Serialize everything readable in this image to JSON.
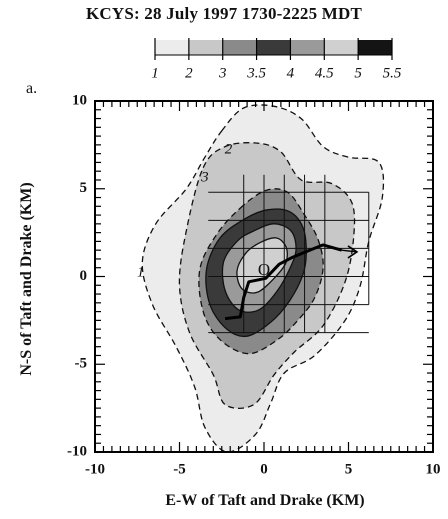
{
  "chart_data": {
    "type": "contour",
    "title": "KCYS: 28 July 1997 1730-2225 MDT",
    "panel_label": "a.",
    "xlabel": "E-W of Taft and Drake (KM)",
    "ylabel": "N-S of Taft and Drake (KM)",
    "xlim": [
      -10,
      10
    ],
    "ylim": [
      -10,
      10
    ],
    "xticks": [
      -10,
      -5,
      0,
      5,
      10
    ],
    "yticks": [
      -10,
      -5,
      0,
      5,
      10
    ],
    "colorbar": {
      "levels": [
        1,
        2,
        3,
        3.5,
        4,
        4.5,
        5,
        5.5
      ],
      "labels": [
        "1",
        "2",
        "3",
        "3.5",
        "4",
        "4.5",
        "5",
        "5.5"
      ],
      "colors": [
        "#ececec",
        "#c8c8c8",
        "#8a8a8a",
        "#3a3a3a",
        "#9a9a9a",
        "#d0d0d0",
        "#141414"
      ]
    },
    "contours": [
      {
        "level": 1,
        "label": "1",
        "style": "dashed",
        "fill": "#ececec",
        "points": [
          [
            -2.5,
            8.3
          ],
          [
            -1.2,
            9.6
          ],
          [
            0.6,
            9.7
          ],
          [
            2.2,
            9
          ],
          [
            3.5,
            7.4
          ],
          [
            5,
            6.8
          ],
          [
            6.8,
            6.5
          ],
          [
            7,
            4.5
          ],
          [
            6.2,
            2
          ],
          [
            5.7,
            -0.5
          ],
          [
            4.8,
            -2.5
          ],
          [
            3,
            -4.5
          ],
          [
            1.2,
            -5.5
          ],
          [
            0.4,
            -7.2
          ],
          [
            -0.5,
            -9
          ],
          [
            -2.2,
            -10
          ],
          [
            -3.5,
            -8.6
          ],
          [
            -4.1,
            -6.3
          ],
          [
            -5.2,
            -4
          ],
          [
            -6.6,
            -1.6
          ],
          [
            -7.2,
            0.8
          ],
          [
            -6.4,
            3
          ],
          [
            -4.6,
            5
          ],
          [
            -3.5,
            6.8
          ]
        ]
      },
      {
        "level": 2,
        "label": "2",
        "style": "dashed",
        "fill": "#c8c8c8",
        "points": [
          [
            -3.6,
            6.2
          ],
          [
            -2.3,
            7.4
          ],
          [
            -0.4,
            7.6
          ],
          [
            1,
            7.1
          ],
          [
            2.2,
            5.5
          ],
          [
            4,
            5.3
          ],
          [
            5.2,
            4.2
          ],
          [
            5.3,
            2.2
          ],
          [
            4.8,
            -0.3
          ],
          [
            3.5,
            -2.8
          ],
          [
            1.8,
            -4.3
          ],
          [
            0.6,
            -5.6
          ],
          [
            -0.6,
            -7.3
          ],
          [
            -2.3,
            -7.3
          ],
          [
            -3,
            -5.6
          ],
          [
            -4.4,
            -3.2
          ],
          [
            -5,
            -0.5
          ],
          [
            -4.6,
            2.6
          ]
        ]
      },
      {
        "level": 3,
        "label": "3",
        "style": "dashed",
        "fill": "#8a8a8a",
        "points": [
          [
            -1.4,
            3.9
          ],
          [
            0.1,
            4.9
          ],
          [
            1.4,
            4.8
          ],
          [
            2.4,
            3.5
          ],
          [
            3.2,
            2.1
          ],
          [
            3.5,
            0.5
          ],
          [
            3,
            -1.2
          ],
          [
            2,
            -2.5
          ],
          [
            0.8,
            -3.6
          ],
          [
            -0.9,
            -4.4
          ],
          [
            -2.6,
            -3.6
          ],
          [
            -3.6,
            -2
          ],
          [
            -3.8,
            0.4
          ],
          [
            -2.8,
            2.4
          ]
        ]
      },
      {
        "level": 3.5,
        "label": "",
        "style": "solid",
        "fill": "#3a3a3a",
        "points": [
          [
            -1.1,
            3.3
          ],
          [
            0.2,
            3.8
          ],
          [
            1.5,
            3.7
          ],
          [
            2.3,
            2.8
          ],
          [
            2.5,
            1.4
          ],
          [
            2.3,
            0.1
          ],
          [
            1.5,
            -1.4
          ],
          [
            0.4,
            -2.6
          ],
          [
            -1,
            -3.4
          ],
          [
            -2.2,
            -3
          ],
          [
            -3.2,
            -1.6
          ],
          [
            -3.4,
            0.4
          ],
          [
            -2.6,
            2.2
          ]
        ]
      },
      {
        "level": 4,
        "label": "",
        "style": "solid",
        "fill": "#9a9a9a",
        "points": [
          [
            -0.6,
            2.6
          ],
          [
            0.6,
            3
          ],
          [
            1.6,
            2.6
          ],
          [
            1.9,
            1.6
          ],
          [
            1.6,
            0.6
          ],
          [
            0.8,
            -0.8
          ],
          [
            -0.3,
            -1.9
          ],
          [
            -1.5,
            -1.9
          ],
          [
            -2.3,
            -0.8
          ],
          [
            -2.4,
            0.8
          ],
          [
            -1.6,
            2
          ]
        ]
      },
      {
        "level": 4.5,
        "label": "",
        "style": "solid",
        "fill": "#d0d0d0",
        "points": [
          [
            -0.3,
            1.9
          ],
          [
            0.7,
            2.2
          ],
          [
            1.3,
            1.7
          ],
          [
            1.3,
            0.8
          ],
          [
            0.6,
            -0.1
          ],
          [
            -0.4,
            -0.9
          ],
          [
            -1.3,
            -0.7
          ],
          [
            -1.6,
            0.3
          ],
          [
            -1.1,
            1.3
          ]
        ]
      }
    ],
    "contour_labels": [
      {
        "text": "2",
        "x": -2.1,
        "y": 7.2
      },
      {
        "text": "3",
        "x": -3.5,
        "y": 5.6
      },
      {
        "text": "1",
        "x": -7.3,
        "y": 0.2
      }
    ],
    "origin_label": {
      "text": "O",
      "x": 0,
      "y": 0.3
    },
    "grid_x": [
      -1.2,
      0,
      1.2,
      2.4,
      3.6
    ],
    "grid_x_span": [
      -3.2,
      5.8
    ],
    "grid_y": [
      4.8,
      3.2,
      1.6,
      0,
      -1.6,
      -3.2
    ],
    "grid_y_span": [
      -3.4,
      5.3
    ],
    "track": [
      [
        -2.3,
        -2.4
      ],
      [
        -1.4,
        -2.3
      ],
      [
        -1.2,
        -1.2
      ],
      [
        -0.9,
        -0.3
      ],
      [
        0.1,
        -0.1
      ],
      [
        0.9,
        0.7
      ],
      [
        1.7,
        1.1
      ],
      [
        2.7,
        1.5
      ],
      [
        3.5,
        1.8
      ],
      [
        4.6,
        1.5
      ]
    ],
    "track_arrow": {
      "from": [
        4.6,
        1.5
      ],
      "to": [
        5.5,
        1.4
      ]
    },
    "colorbar_ticks": [
      1,
      2,
      3,
      3.5,
      4,
      4.5,
      5,
      5.5
    ]
  }
}
